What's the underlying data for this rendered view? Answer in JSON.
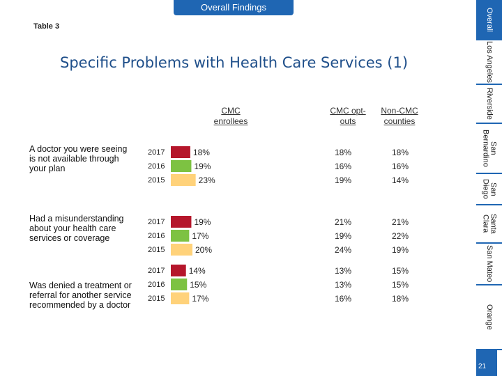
{
  "header": {
    "tab_label": "Overall Findings",
    "table_label": "Table 3"
  },
  "title": "Specific Problems with Health Care Services (1)",
  "columns": {
    "cmc": "CMC enrollees",
    "optout": "CMC opt-outs",
    "noncmc": "Non-CMC counties"
  },
  "colors": {
    "2017": "#b5162b",
    "2016": "#7dc242",
    "2015": "#ffd27a",
    "accent": "#1f66b3"
  },
  "chart_data": {
    "type": "bar",
    "orientation": "horizontal",
    "title": "Specific Problems with Health Care Services (1)",
    "unit": "%",
    "xlim": [
      0,
      100
    ],
    "categories": [
      "A doctor you were seeing is not available through your plan",
      "Had a misunderstanding about your health care services or coverage",
      "Was denied a treatment or referral for another service recommended by a doctor"
    ],
    "series": [
      {
        "name": "2017",
        "values": [
          18,
          19,
          14
        ]
      },
      {
        "name": "2016",
        "values": [
          19,
          17,
          15
        ]
      },
      {
        "name": "2015",
        "values": [
          23,
          20,
          17
        ]
      }
    ],
    "groups": [
      {
        "label": "A doctor you were seeing is not available through your plan",
        "rows": [
          {
            "year": "2017",
            "cmc": 18,
            "cmc_label": "18%",
            "optout": "18%",
            "noncmc": "18%"
          },
          {
            "year": "2016",
            "cmc": 19,
            "cmc_label": "19%",
            "optout": "16%",
            "noncmc": "16%"
          },
          {
            "year": "2015",
            "cmc": 23,
            "cmc_label": "23%",
            "optout": "19%",
            "noncmc": "14%"
          }
        ]
      },
      {
        "label": "Had a misunderstanding about your health care services or coverage",
        "rows": [
          {
            "year": "2017",
            "cmc": 19,
            "cmc_label": "19%",
            "optout": "21%",
            "noncmc": "21%"
          },
          {
            "year": "2016",
            "cmc": 17,
            "cmc_label": "17%",
            "optout": "19%",
            "noncmc": "22%"
          },
          {
            "year": "2015",
            "cmc": 20,
            "cmc_label": "20%",
            "optout": "24%",
            "noncmc": "19%"
          }
        ]
      },
      {
        "label": "Was denied a treatment or referral for another service recommended by a doctor",
        "rows": [
          {
            "year": "2017",
            "cmc": 14,
            "cmc_label": "14%",
            "optout": "13%",
            "noncmc": "15%"
          },
          {
            "year": "2016",
            "cmc": 15,
            "cmc_label": "15%",
            "optout": "13%",
            "noncmc": "15%"
          },
          {
            "year": "2015",
            "cmc": 17,
            "cmc_label": "17%",
            "optout": "16%",
            "noncmc": "18%"
          }
        ]
      }
    ]
  },
  "sidebar": {
    "items": [
      {
        "label": "Overall",
        "active": true
      },
      {
        "label": "Los Angeles",
        "active": false
      },
      {
        "label": "Riverside",
        "active": false
      },
      {
        "label": "San Bernardino",
        "active": false
      },
      {
        "label": "San Diego",
        "active": false
      },
      {
        "label": "Santa Clara",
        "active": false
      },
      {
        "label": "San Mateo",
        "active": false
      },
      {
        "label": "Orange",
        "active": false
      }
    ]
  },
  "page_number": "21"
}
